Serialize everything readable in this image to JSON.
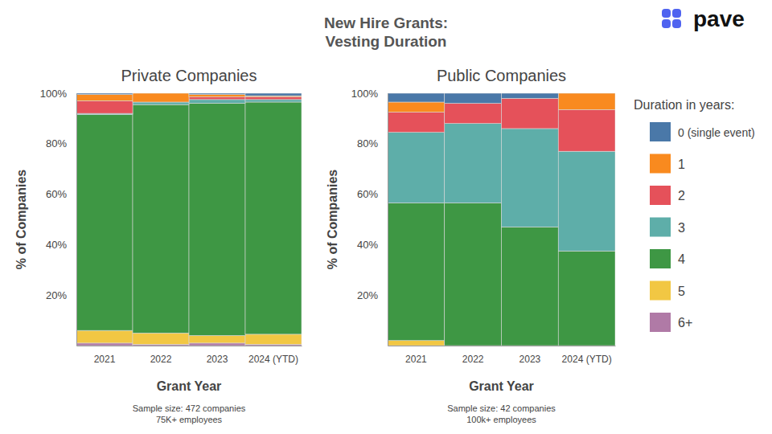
{
  "title": [
    "New Hire Grants:",
    "Vesting Duration"
  ],
  "logo": "pave",
  "legend_title": "Duration in years:",
  "chart_data": [
    {
      "type": "bar",
      "stacked": true,
      "title": "Private Companies",
      "x_label": "Grant Year",
      "y_label": "% of Companies",
      "categories": [
        "2021",
        "2022",
        "2023",
        "2024 (YTD)"
      ],
      "ylim": [
        0,
        100
      ],
      "yticks": [
        {
          "value": 20,
          "label": "20%"
        },
        {
          "value": 40,
          "label": "40%"
        },
        {
          "value": 60,
          "label": "60%"
        },
        {
          "value": 80,
          "label": "80%"
        },
        {
          "value": 100,
          "label": "100%"
        }
      ],
      "notes": [
        "Sample size: 472 companies",
        "75K+ employees"
      ],
      "series": [
        {
          "name": "0 (single event)",
          "color": "#4a78a8",
          "values": [
            0.5,
            0,
            0.5,
            1
          ]
        },
        {
          "name": "1",
          "color": "#f98a1f",
          "values": [
            2.5,
            3.5,
            1,
            0.5
          ]
        },
        {
          "name": "2",
          "color": "#e5515a",
          "values": [
            5,
            0,
            1,
            1
          ]
        },
        {
          "name": "3",
          "color": "#5eaea9",
          "values": [
            0.5,
            1,
            1.5,
            1
          ]
        },
        {
          "name": "4",
          "color": "#3e9744",
          "values": [
            85.5,
            90.5,
            92,
            92
          ]
        },
        {
          "name": "5",
          "color": "#f2c743",
          "values": [
            5,
            4.5,
            3,
            4
          ]
        },
        {
          "name": "6+",
          "color": "#b07aa6",
          "values": [
            1,
            0.5,
            1,
            0.5
          ]
        }
      ]
    },
    {
      "type": "bar",
      "stacked": true,
      "title": "Public Companies",
      "legend": "right",
      "x_label": "Grant Year",
      "y_label": "% of Companies",
      "categories": [
        "2021",
        "2022",
        "2023",
        "2024 (YTD)"
      ],
      "ylim": [
        0,
        100
      ],
      "yticks": [
        {
          "value": 20,
          "label": "20%"
        },
        {
          "value": 40,
          "label": "40%"
        },
        {
          "value": 60,
          "label": "60%"
        },
        {
          "value": 80,
          "label": "80%"
        },
        {
          "value": 100,
          "label": "100%"
        }
      ],
      "notes": [
        "Sample size: 42 companies",
        "100k+ employees"
      ],
      "series": [
        {
          "name": "0 (single event)",
          "color": "#4a78a8",
          "values": [
            3.5,
            4,
            2,
            0
          ]
        },
        {
          "name": "1",
          "color": "#f98a1f",
          "values": [
            4,
            0,
            0,
            6.5
          ]
        },
        {
          "name": "2",
          "color": "#e5515a",
          "values": [
            8,
            8,
            12,
            16.5
          ]
        },
        {
          "name": "3",
          "color": "#5eaea9",
          "values": [
            28,
            31.5,
            39,
            39.5
          ]
        },
        {
          "name": "4",
          "color": "#3e9744",
          "values": [
            54.5,
            56.5,
            47,
            37.5
          ]
        },
        {
          "name": "5",
          "color": "#f2c743",
          "values": [
            2,
            0,
            0,
            0
          ]
        },
        {
          "name": "6+",
          "color": "#b07aa6",
          "values": [
            0,
            0,
            0,
            0
          ]
        }
      ]
    }
  ]
}
